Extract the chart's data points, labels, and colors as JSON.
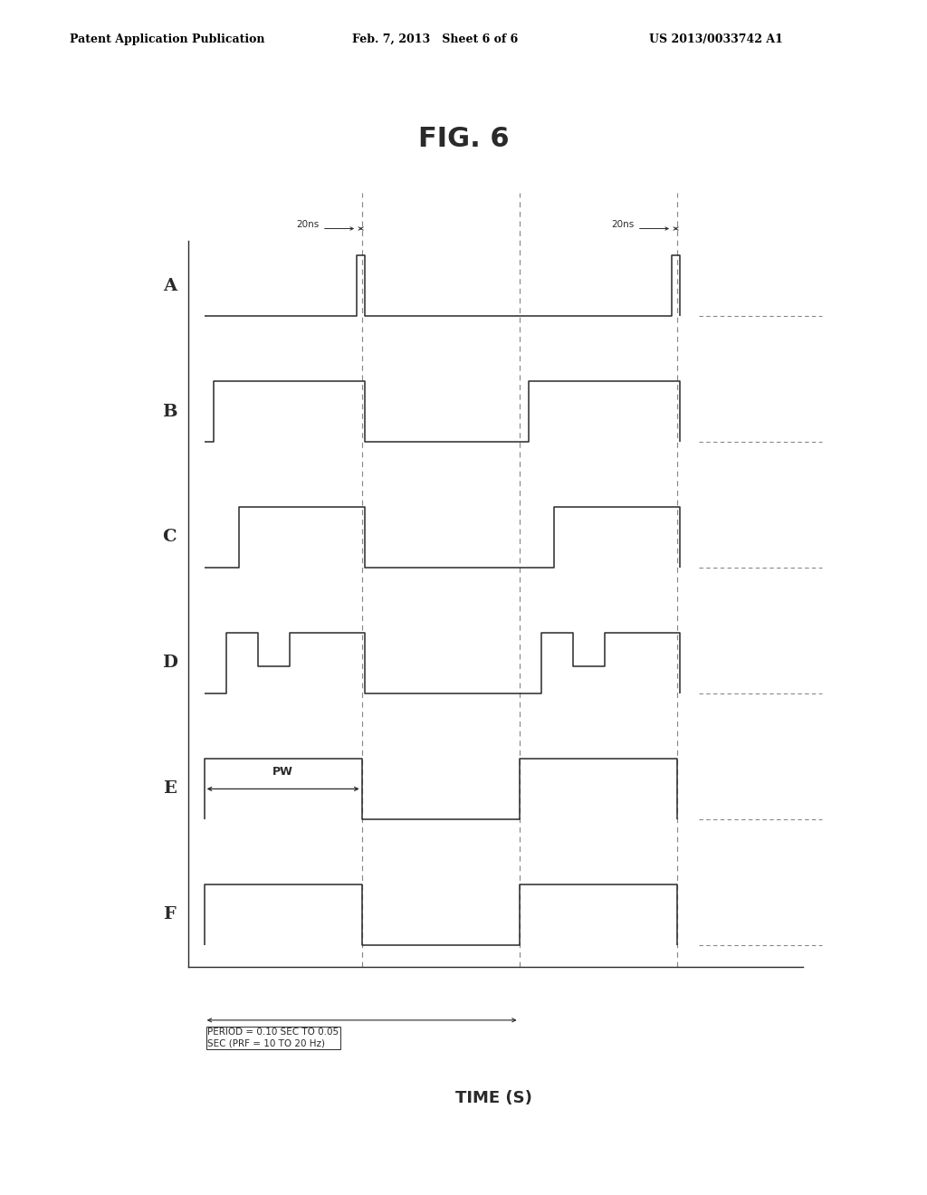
{
  "title": "FIG. 6",
  "xlabel": "TIME (S)",
  "header_left": "Patent Application Publication",
  "header_center": "Feb. 7, 2013   Sheet 6 of 6",
  "header_right": "US 2013/0033742 A1",
  "channels": [
    "A",
    "B",
    "C",
    "D",
    "E",
    "F"
  ],
  "bg_color": "#ffffff",
  "line_color": "#2a2a2a",
  "dashed_color": "#888888",
  "period_annotation_line1": "PERIOD = 0.10 SEC TO 0.05",
  "period_annotation_line2": "SEC (PRF = 10 TO 20 Hz)",
  "pw_annotation": "PW",
  "ns_annotation": "20ns"
}
